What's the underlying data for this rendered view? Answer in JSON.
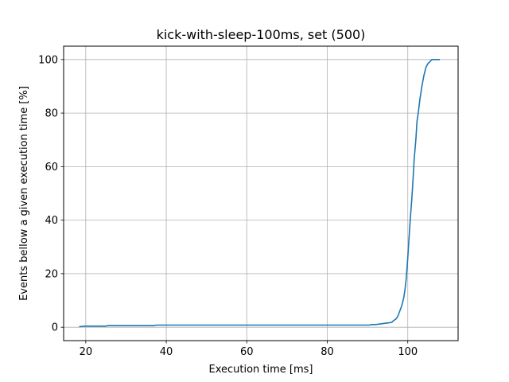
{
  "chart_data": {
    "type": "line",
    "title": "kick-with-sleep-100ms, set (500)",
    "xlabel": "Execution time [ms]",
    "ylabel": "Events bellow a given execution time [%]",
    "xlim": [
      14.5,
      112.5
    ],
    "ylim": [
      -5,
      105
    ],
    "xticks": [
      20,
      40,
      60,
      80,
      100
    ],
    "yticks": [
      0,
      20,
      40,
      60,
      80,
      100
    ],
    "grid": true,
    "series_color": "#1f77b4",
    "series": [
      {
        "x": [
          18.5,
          19.5,
          20,
          25,
          25.5,
          37,
          37.5,
          60,
          80,
          90.5,
          91,
          92,
          93,
          94,
          95,
          96,
          96.5,
          97,
          97.5,
          98,
          98.5,
          99,
          99.3,
          99.6,
          100,
          100.3,
          100.6,
          101,
          101.3,
          101.6,
          102,
          102.3,
          102.6,
          103,
          103.5,
          104,
          104.5,
          105,
          105.5,
          106,
          107,
          107.8
        ],
        "y": [
          0.2,
          0.4,
          0.4,
          0.4,
          0.6,
          0.6,
          0.8,
          0.8,
          0.8,
          0.8,
          1.0,
          1.0,
          1.2,
          1.4,
          1.6,
          1.8,
          2.5,
          3.0,
          4.0,
          6.0,
          8.0,
          11.0,
          14.0,
          18.0,
          26.0,
          33.0,
          40.0,
          48.0,
          55.0,
          63.0,
          70.0,
          77.0,
          80.0,
          85.0,
          90.0,
          94.0,
          97.0,
          98.5,
          99.2,
          100.0,
          100.0,
          100.0
        ]
      }
    ]
  }
}
